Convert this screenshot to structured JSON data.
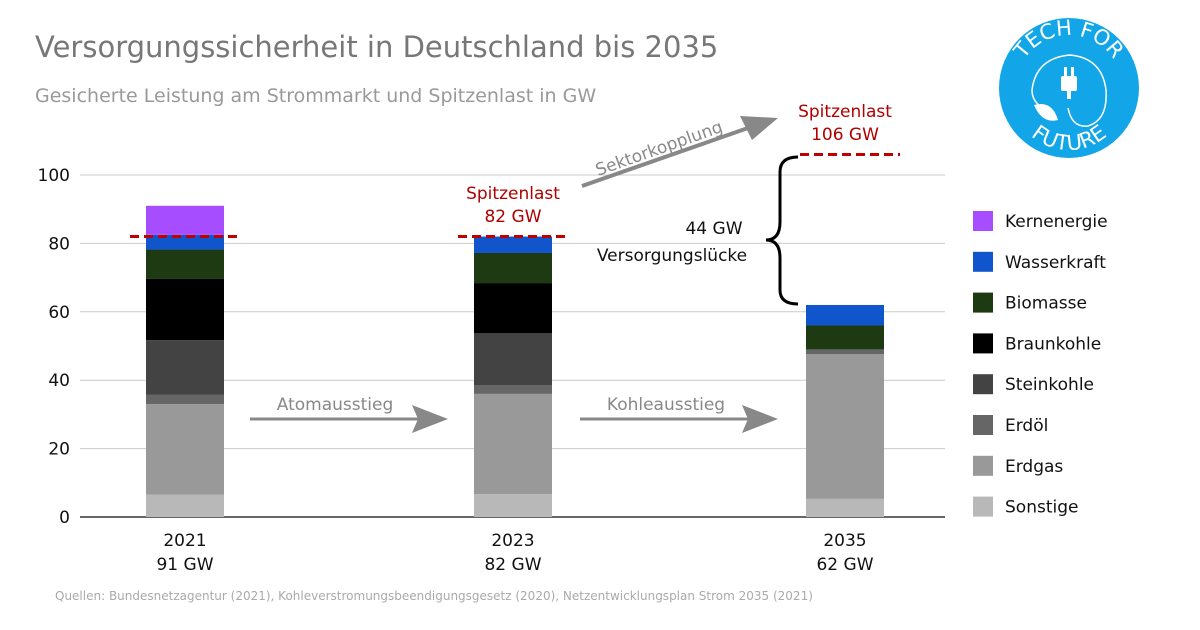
{
  "title": "Versorgungssicherheit in Deutschland bis 2035",
  "subtitle": "Gesicherte Leistung am Strommarkt und Spitzenlast in GW",
  "source": "Quellen: Bundesnetzagentur (2021), Kohleverstromungsbeendigungsgesetz (2020), Netzentwicklungsplan Strom 2035 (2021)",
  "logo": {
    "top_text": "TECH FOR",
    "bottom_text": "FUTURE",
    "color": "#12a6e9"
  },
  "annotations": {
    "spitzenlast_2023": [
      "Spitzenlast",
      "82 GW"
    ],
    "spitzenlast_2035": [
      "Spitzenlast",
      "106 GW"
    ],
    "sektorkopplung": "Sektorkopplung",
    "atomausstieg": "Atomausstieg",
    "kohleausstieg": "Kohleausstieg",
    "gap_value": "44 GW",
    "gap_label": "Versorgungslücke",
    "accent_color": "#c00000"
  },
  "chart_data": {
    "type": "bar",
    "stacked": true,
    "title": "Versorgungssicherheit in Deutschland bis 2035",
    "ylim": [
      0,
      100
    ],
    "yticks": [
      0,
      20,
      40,
      60,
      80,
      100
    ],
    "grid": true,
    "legend_position": "right",
    "categories": [
      "2021",
      "2023",
      "2035"
    ],
    "category_totals": [
      "91 GW",
      "82 GW",
      "62 GW"
    ],
    "peak_load": [
      82,
      82,
      106
    ],
    "series": [
      {
        "name": "Sonstige",
        "color": "#b8b8b8",
        "values": [
          6.5,
          6.7,
          5.3
        ]
      },
      {
        "name": "Erdgas",
        "color": "#999999",
        "values": [
          26.5,
          29.3,
          42.3
        ]
      },
      {
        "name": "Erdöl",
        "color": "#666666",
        "values": [
          2.7,
          2.6,
          1.4
        ]
      },
      {
        "name": "Steinkohle",
        "color": "#434343",
        "values": [
          16,
          15.2,
          0
        ]
      },
      {
        "name": "Braunkohle",
        "color": "#000000",
        "values": [
          18,
          14.6,
          0
        ]
      },
      {
        "name": "Biomasse",
        "color": "#1e3a12",
        "values": [
          8.5,
          8.8,
          7
        ]
      },
      {
        "name": "Wasserkraft",
        "color": "#1155cc",
        "values": [
          4.3,
          4.8,
          6
        ]
      },
      {
        "name": "Kernenergie",
        "color": "#a64dff",
        "values": [
          8.5,
          0,
          0
        ]
      }
    ]
  }
}
